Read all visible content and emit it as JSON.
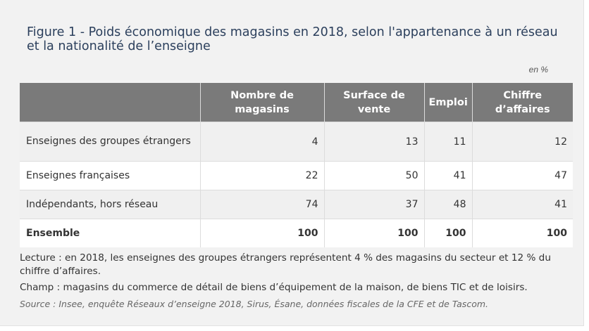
{
  "figure": {
    "title": "Figure 1 - Poids économique des magasins en 2018, selon l'appartenance à un réseau et la nationalité de l’enseigne",
    "unit": "en %"
  },
  "table": {
    "headers": [
      "",
      "Nombre de magasins",
      "Surface de vente",
      "Emploi",
      "Chiffre d’affaires"
    ],
    "rows": [
      {
        "label": "Enseignes des groupes étrangers",
        "values": [
          "4",
          "13",
          "11",
          "12"
        ]
      },
      {
        "label": "Enseignes françaises",
        "values": [
          "22",
          "50",
          "41",
          "47"
        ]
      },
      {
        "label": "Indépendants, hors réseau",
        "values": [
          "74",
          "37",
          "48",
          "41"
        ]
      },
      {
        "label": "Ensemble",
        "values": [
          "100",
          "100",
          "100",
          "100"
        ]
      }
    ]
  },
  "notes": {
    "lecture": "Lecture : en 2018, les enseignes des groupes étrangers représentent 4 % des magasins du secteur et 12 % du chiffre d’affaires.",
    "champ": "Champ : magasins du commerce de détail de biens d’équipement de la maison, de biens TIC et de loisirs.",
    "source": "Source : Insee, enquête Réseaux d’enseigne 2018, Sirus, Ésane, données fiscales de la CFE et de Tascom."
  }
}
